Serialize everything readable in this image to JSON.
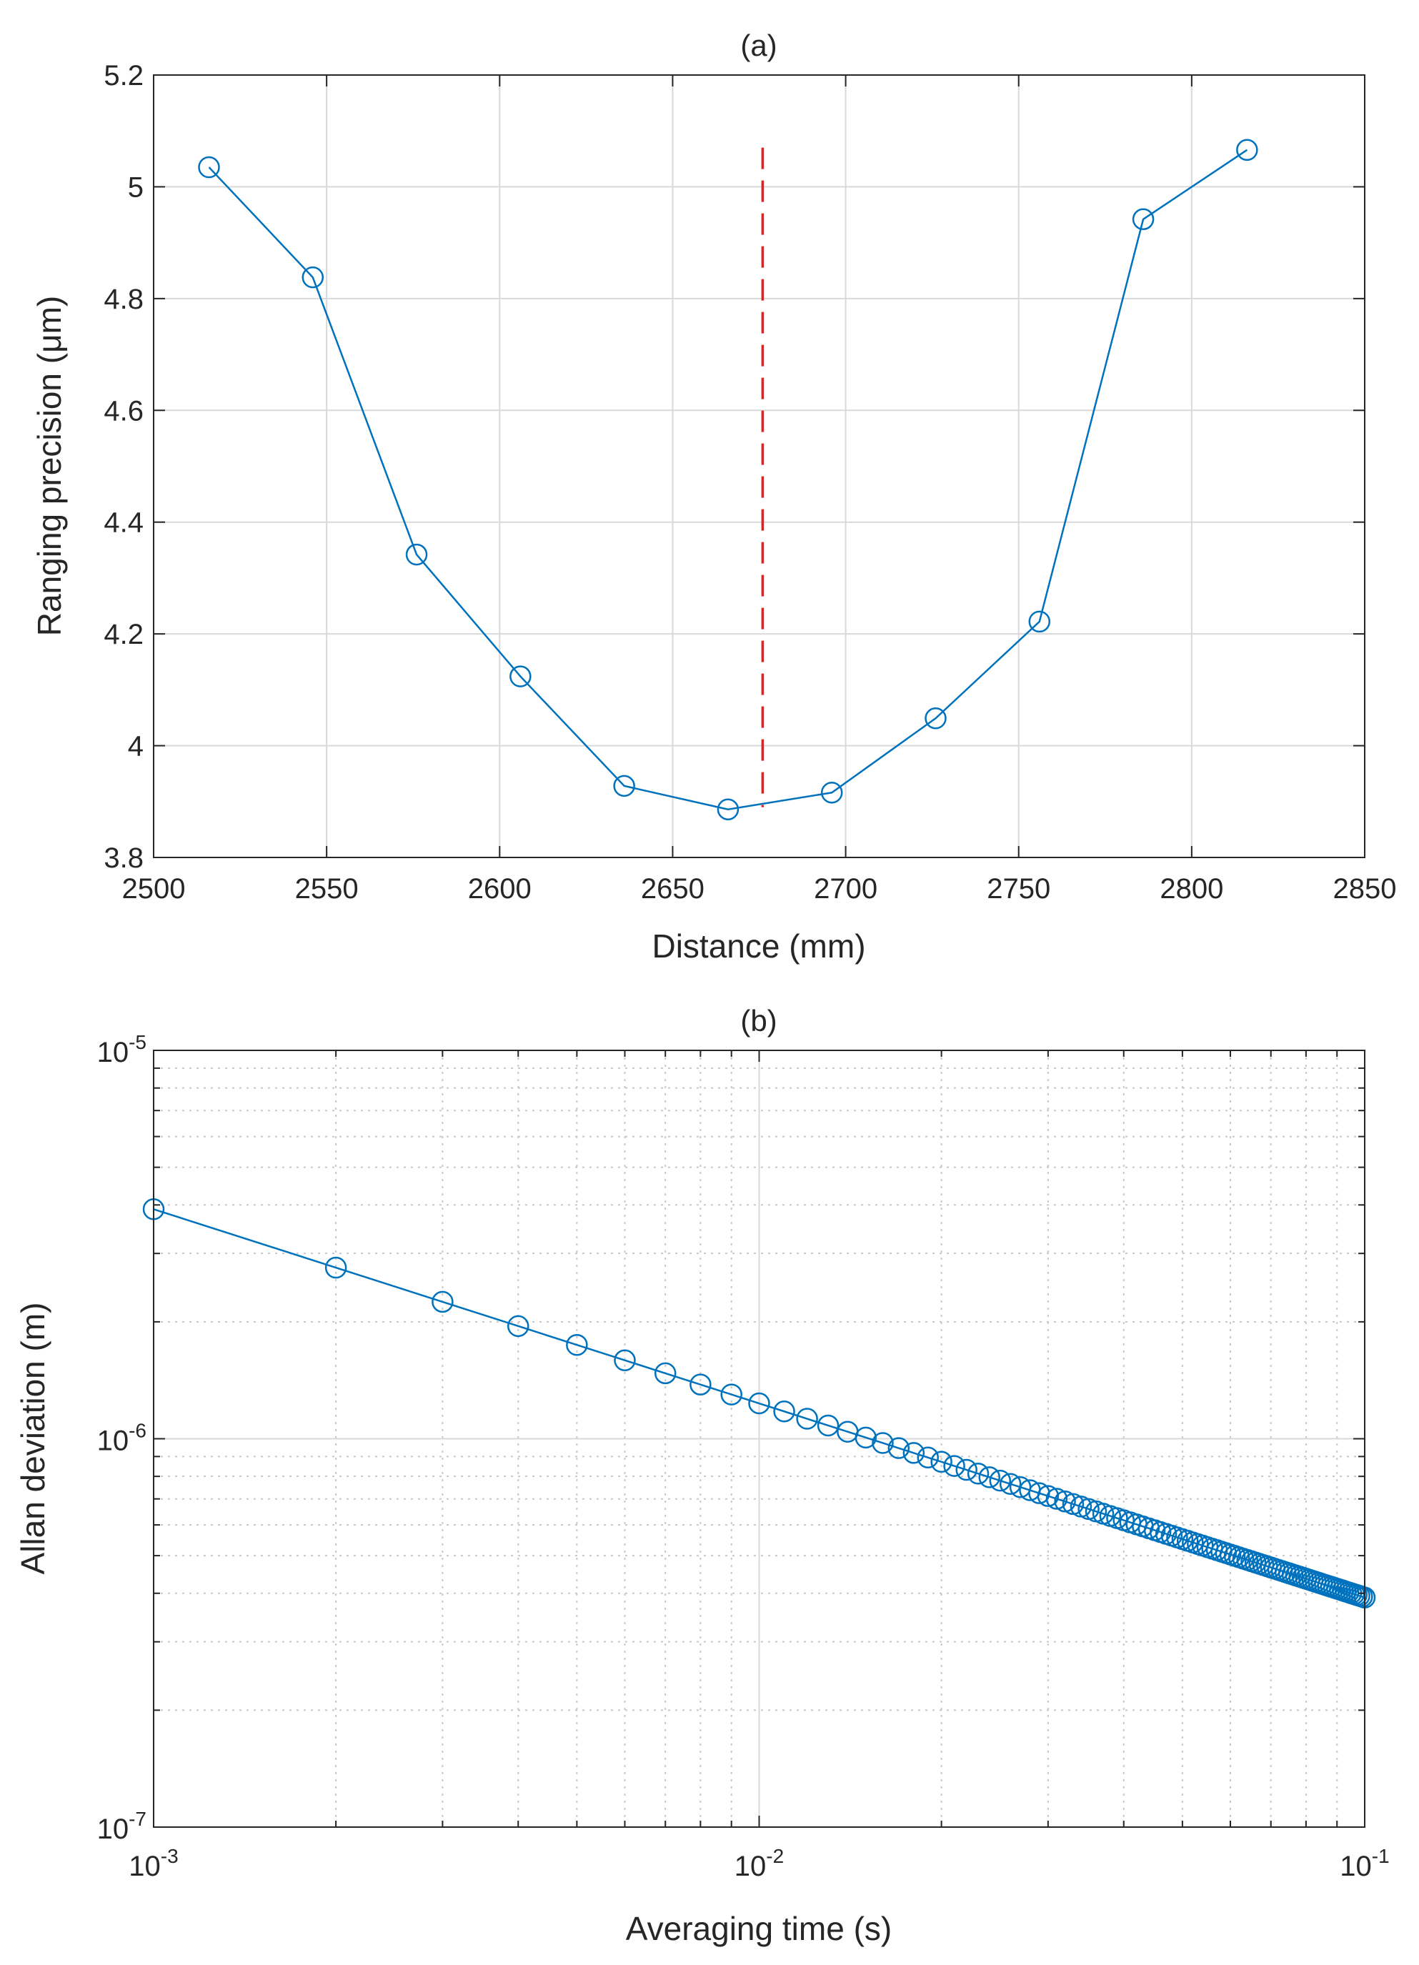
{
  "chart_data": [
    {
      "type": "line",
      "title": "(a)",
      "xlabel": "Distance (mm)",
      "ylabel": "Ranging precision (μm)",
      "xlim": [
        2500,
        2850
      ],
      "ylim": [
        3.8,
        5.2
      ],
      "xticks": [
        2500,
        2550,
        2600,
        2650,
        2700,
        2750,
        2800,
        2850
      ],
      "yticks": [
        3.8,
        4,
        4.2,
        4.4,
        4.6,
        4.8,
        5,
        5.2
      ],
      "xtick_labels": [
        "2500",
        "2550",
        "2600",
        "2650",
        "2700",
        "2750",
        "2800",
        "2850"
      ],
      "ytick_labels": [
        "3.8",
        "4",
        "4.2",
        "4.4",
        "4.6",
        "4.8",
        "5",
        "5.2"
      ],
      "grid": true,
      "series": [
        {
          "name": "Ranging precision",
          "color": "#0072BD",
          "marker": "circle",
          "x": [
            2516,
            2546,
            2576,
            2606,
            2636,
            2666,
            2696,
            2726,
            2756,
            2786,
            2816
          ],
          "y": [
            5.035,
            4.838,
            4.342,
            4.124,
            3.928,
            3.886,
            3.916,
            4.049,
            4.222,
            4.942,
            5.066
          ]
        }
      ],
      "reference_line": {
        "x": 2676,
        "y": [
          3.89,
          5.07
        ],
        "color": "#D62728",
        "style": "dashed"
      }
    },
    {
      "type": "line",
      "title": "(b)",
      "xlabel": "Averaging time (s)",
      "ylabel": "Allan deviation (m)",
      "xscale": "log",
      "yscale": "log",
      "xlim": [
        0.001,
        0.1
      ],
      "ylim": [
        1e-07,
        1e-05
      ],
      "xticks": [
        0.001,
        0.01,
        0.1
      ],
      "yticks": [
        1e-07,
        1e-06,
        1e-05
      ],
      "xtick_labels": [
        {
          "base": "10",
          "exp": "-3"
        },
        {
          "base": "10",
          "exp": "-2"
        },
        {
          "base": "10",
          "exp": "-1"
        }
      ],
      "ytick_labels": [
        {
          "base": "10",
          "exp": "-7"
        },
        {
          "base": "10",
          "exp": "-6"
        },
        {
          "base": "10",
          "exp": "-5"
        }
      ],
      "grid": true,
      "minor_grid": true,
      "series": [
        {
          "name": "Allan deviation",
          "color": "#0072BD",
          "marker": "circle",
          "x_start": 0.001,
          "x_step": 0.001,
          "count": 100,
          "y_at_first": 3.9e-06,
          "slope": -0.5
        }
      ]
    }
  ]
}
